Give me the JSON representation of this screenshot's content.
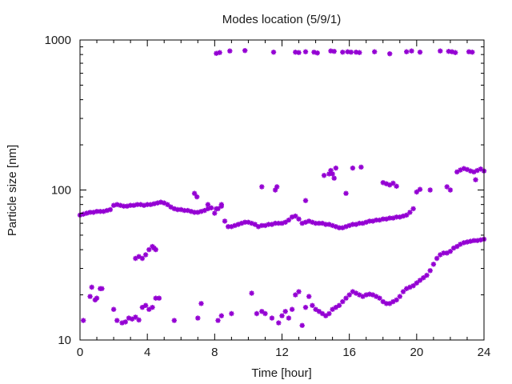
{
  "chart_data": {
    "type": "scatter",
    "title": "Modes location (5/9/1)",
    "xlabel": "Time [hour]",
    "ylabel": "Particle size [nm]",
    "xlim": [
      0,
      24
    ],
    "ylim": [
      10,
      1000
    ],
    "yscale": "log",
    "grid": false,
    "legend": "none",
    "marker_color": "#9400d3",
    "xticks": [
      0,
      4,
      8,
      12,
      16,
      20,
      24
    ],
    "xtick_labels": [
      "0",
      "4",
      "8",
      "12",
      "16",
      "20",
      "24"
    ],
    "yticks": [
      10,
      100,
      1000
    ],
    "ytick_labels": [
      "10",
      "100",
      "1000"
    ],
    "series": [
      {
        "mode": "main",
        "points": [
          [
            0.0,
            68
          ],
          [
            0.2,
            69
          ],
          [
            0.4,
            70
          ],
          [
            0.6,
            71
          ],
          [
            0.8,
            71
          ],
          [
            1.0,
            72
          ],
          [
            1.2,
            72
          ],
          [
            1.4,
            72
          ],
          [
            1.6,
            73
          ],
          [
            1.8,
            74
          ],
          [
            2.0,
            79
          ],
          [
            2.2,
            80
          ],
          [
            2.4,
            79
          ],
          [
            2.6,
            78
          ],
          [
            2.8,
            78
          ],
          [
            3.0,
            79
          ],
          [
            3.2,
            79
          ],
          [
            3.4,
            80
          ],
          [
            3.6,
            80
          ],
          [
            3.8,
            79
          ],
          [
            4.0,
            80
          ],
          [
            4.2,
            80
          ],
          [
            4.4,
            81
          ],
          [
            4.6,
            82
          ],
          [
            4.8,
            83
          ],
          [
            5.0,
            82
          ],
          [
            5.2,
            80
          ],
          [
            5.4,
            77
          ],
          [
            5.6,
            75
          ],
          [
            5.8,
            74
          ],
          [
            6.0,
            74
          ],
          [
            6.2,
            73
          ],
          [
            6.4,
            73
          ],
          [
            6.6,
            72
          ],
          [
            6.8,
            71
          ],
          [
            7.0,
            71
          ],
          [
            7.2,
            72
          ],
          [
            7.4,
            73
          ],
          [
            7.6,
            75
          ],
          [
            7.8,
            76
          ],
          [
            8.0,
            70
          ],
          [
            8.2,
            75
          ],
          [
            8.4,
            78
          ],
          [
            8.6,
            62
          ],
          [
            8.8,
            57
          ],
          [
            9.0,
            57
          ],
          [
            9.2,
            58
          ],
          [
            9.4,
            59
          ],
          [
            9.6,
            60
          ],
          [
            9.8,
            61
          ],
          [
            10.0,
            61
          ],
          [
            10.2,
            60
          ],
          [
            10.4,
            59
          ],
          [
            10.6,
            57
          ],
          [
            10.8,
            58
          ],
          [
            11.0,
            58
          ],
          [
            11.2,
            59
          ],
          [
            11.4,
            59
          ],
          [
            11.6,
            60
          ],
          [
            11.8,
            60
          ],
          [
            12.0,
            60
          ],
          [
            12.2,
            61
          ],
          [
            12.4,
            63
          ],
          [
            12.6,
            66
          ],
          [
            12.8,
            67
          ],
          [
            13.0,
            64
          ],
          [
            13.2,
            60
          ],
          [
            13.4,
            61
          ],
          [
            13.6,
            62
          ],
          [
            13.8,
            61
          ],
          [
            14.0,
            60
          ],
          [
            14.2,
            60
          ],
          [
            14.4,
            60
          ],
          [
            14.6,
            59
          ],
          [
            14.8,
            59
          ],
          [
            15.0,
            58
          ],
          [
            15.2,
            57
          ],
          [
            15.4,
            56
          ],
          [
            15.6,
            56
          ],
          [
            15.8,
            57
          ],
          [
            16.0,
            58
          ],
          [
            16.2,
            59
          ],
          [
            16.4,
            59
          ],
          [
            16.6,
            60
          ],
          [
            16.8,
            60
          ],
          [
            17.0,
            61
          ],
          [
            17.2,
            62
          ],
          [
            17.4,
            62
          ],
          [
            17.6,
            63
          ],
          [
            17.8,
            63
          ],
          [
            18.0,
            64
          ],
          [
            18.2,
            64
          ],
          [
            18.4,
            65
          ],
          [
            18.6,
            65
          ],
          [
            18.8,
            66
          ],
          [
            19.0,
            66
          ],
          [
            19.2,
            67
          ],
          [
            19.4,
            68
          ],
          [
            19.6,
            71
          ],
          [
            19.8,
            75
          ]
        ]
      },
      {
        "mode": "upper",
        "points": [
          [
            8.1,
            815
          ],
          [
            8.3,
            825
          ],
          [
            8.9,
            845
          ],
          [
            9.8,
            850
          ],
          [
            11.5,
            830
          ],
          [
            12.8,
            830
          ],
          [
            13.0,
            825
          ],
          [
            13.4,
            835
          ],
          [
            13.9,
            830
          ],
          [
            14.1,
            820
          ],
          [
            14.9,
            845
          ],
          [
            15.1,
            840
          ],
          [
            15.6,
            830
          ],
          [
            15.9,
            835
          ],
          [
            16.1,
            830
          ],
          [
            16.4,
            830
          ],
          [
            16.6,
            825
          ],
          [
            17.5,
            835
          ],
          [
            18.4,
            810
          ],
          [
            19.4,
            835
          ],
          [
            19.7,
            845
          ],
          [
            20.2,
            830
          ],
          [
            21.4,
            845
          ],
          [
            21.9,
            840
          ],
          [
            22.1,
            835
          ],
          [
            22.3,
            825
          ],
          [
            23.1,
            835
          ],
          [
            23.3,
            830
          ],
          [
            10.8,
            105
          ],
          [
            11.6,
            100
          ],
          [
            11.7,
            105
          ],
          [
            13.4,
            85
          ],
          [
            14.5,
            125
          ],
          [
            14.8,
            128
          ],
          [
            14.9,
            135
          ],
          [
            15.0,
            128
          ],
          [
            15.2,
            140
          ],
          [
            15.1,
            120
          ],
          [
            15.8,
            95
          ],
          [
            16.2,
            140
          ],
          [
            16.7,
            142
          ],
          [
            18.0,
            112
          ],
          [
            18.2,
            110
          ],
          [
            18.4,
            108
          ],
          [
            18.6,
            111
          ],
          [
            18.8,
            106
          ],
          [
            20.0,
            97
          ],
          [
            20.2,
            101
          ],
          [
            20.8,
            100
          ],
          [
            21.8,
            105
          ],
          [
            22.0,
            100
          ],
          [
            22.4,
            132
          ],
          [
            22.6,
            136
          ],
          [
            22.8,
            139
          ],
          [
            23.0,
            137
          ],
          [
            23.2,
            134
          ],
          [
            23.4,
            132
          ],
          [
            23.6,
            135
          ],
          [
            23.8,
            138
          ],
          [
            24.0,
            134
          ],
          [
            23.5,
            117
          ],
          [
            6.8,
            95
          ],
          [
            6.95,
            90
          ],
          [
            7.6,
            80
          ],
          [
            8.1,
            75
          ],
          [
            8.4,
            80
          ],
          [
            3.3,
            35
          ],
          [
            3.5,
            36
          ],
          [
            3.7,
            35
          ],
          [
            3.9,
            37
          ],
          [
            4.1,
            40
          ],
          [
            4.3,
            42
          ],
          [
            4.4,
            41
          ],
          [
            4.5,
            40
          ]
        ]
      },
      {
        "mode": "lower",
        "points": [
          [
            0.2,
            13.5
          ],
          [
            0.6,
            19.5
          ],
          [
            0.7,
            22.5
          ],
          [
            0.9,
            18.5
          ],
          [
            1.0,
            19
          ],
          [
            1.2,
            22
          ],
          [
            1.3,
            22
          ],
          [
            2.0,
            16
          ],
          [
            2.2,
            13.5
          ],
          [
            2.5,
            13
          ],
          [
            2.7,
            13.2
          ],
          [
            2.9,
            14
          ],
          [
            3.1,
            13.8
          ],
          [
            3.3,
            14.2
          ],
          [
            3.5,
            13.6
          ],
          [
            3.7,
            16.5
          ],
          [
            3.9,
            17
          ],
          [
            4.1,
            16
          ],
          [
            4.3,
            16.5
          ],
          [
            4.5,
            19
          ],
          [
            4.7,
            19
          ],
          [
            5.6,
            13.5
          ],
          [
            7.0,
            14
          ],
          [
            7.2,
            17.5
          ],
          [
            8.2,
            13.5
          ],
          [
            8.4,
            14.5
          ],
          [
            9.0,
            15
          ],
          [
            10.2,
            20.5
          ],
          [
            10.5,
            15
          ],
          [
            10.8,
            15.5
          ],
          [
            11.0,
            15
          ],
          [
            11.4,
            14
          ],
          [
            11.8,
            13
          ],
          [
            12.0,
            14.5
          ],
          [
            12.2,
            15.5
          ],
          [
            12.4,
            14
          ],
          [
            12.6,
            16
          ],
          [
            12.8,
            20
          ],
          [
            13.0,
            21
          ],
          [
            13.2,
            12.5
          ],
          [
            13.4,
            16.5
          ],
          [
            13.6,
            19.5
          ],
          [
            13.8,
            17
          ],
          [
            14.0,
            16
          ],
          [
            14.2,
            15.5
          ],
          [
            14.4,
            15
          ],
          [
            14.6,
            14.5
          ],
          [
            14.8,
            15
          ],
          [
            15.0,
            16
          ],
          [
            15.2,
            16.5
          ],
          [
            15.4,
            17
          ],
          [
            15.6,
            18
          ],
          [
            15.8,
            19
          ],
          [
            16.0,
            20
          ],
          [
            16.2,
            21
          ],
          [
            16.4,
            20.5
          ],
          [
            16.6,
            20
          ],
          [
            16.8,
            19.5
          ],
          [
            17.0,
            20
          ],
          [
            17.2,
            20.2
          ],
          [
            17.4,
            20
          ],
          [
            17.6,
            19.5
          ],
          [
            17.8,
            19
          ],
          [
            18.0,
            18
          ],
          [
            18.2,
            17.5
          ],
          [
            18.4,
            17.5
          ],
          [
            18.6,
            18
          ],
          [
            18.8,
            18.5
          ],
          [
            19.0,
            19.5
          ],
          [
            19.2,
            21
          ],
          [
            19.4,
            22
          ],
          [
            19.6,
            22.5
          ],
          [
            19.8,
            23
          ],
          [
            20.0,
            24
          ],
          [
            20.2,
            25
          ],
          [
            20.4,
            26
          ],
          [
            20.6,
            27
          ],
          [
            20.8,
            29
          ],
          [
            21.0,
            32
          ],
          [
            21.2,
            35
          ],
          [
            21.4,
            37
          ],
          [
            21.6,
            38
          ],
          [
            21.8,
            38
          ],
          [
            22.0,
            39
          ],
          [
            22.2,
            41
          ],
          [
            22.4,
            42
          ],
          [
            22.6,
            43.5
          ],
          [
            22.8,
            44.5
          ],
          [
            23.0,
            45
          ],
          [
            23.2,
            45.5
          ],
          [
            23.4,
            46
          ],
          [
            23.6,
            46
          ],
          [
            23.8,
            46.5
          ],
          [
            24.0,
            47
          ]
        ]
      }
    ]
  }
}
